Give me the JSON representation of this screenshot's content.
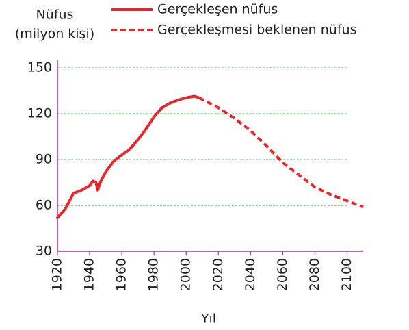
{
  "chart_data": {
    "type": "line",
    "y_label": [
      "Nüfus",
      "(milyon kişi)"
    ],
    "x_label": "Yıl",
    "xlim": [
      1920,
      2110
    ],
    "xticks": [
      1920,
      1940,
      1960,
      1980,
      2000,
      2020,
      2040,
      2060,
      2080,
      2100
    ],
    "ylim": [
      30,
      155
    ],
    "yticks": [
      30,
      60,
      90,
      120,
      150
    ],
    "grid": true,
    "grid_color": "#2e9e3a",
    "axis_color": "#a0389c",
    "series": [
      {
        "name": "Gerçekleşen nüfus",
        "color": "#e8262b",
        "dashed": false,
        "x": [
          1920,
          1925,
          1930,
          1935,
          1940,
          1942,
          1944,
          1945,
          1947,
          1950,
          1955,
          1960,
          1965,
          1970,
          1975,
          1980,
          1985,
          1990,
          1995,
          2000,
          2005,
          2008
        ],
        "values": [
          52,
          58,
          68,
          70,
          73,
          76,
          75,
          70,
          76,
          82,
          89,
          93,
          97,
          103,
          110,
          118,
          124,
          127,
          129,
          130.5,
          131.5,
          130.5
        ]
      },
      {
        "name": "Gerçekleşmesi beklenen nüfus",
        "color": "#e8262b",
        "dashed": true,
        "x": [
          2008,
          2020,
          2030,
          2040,
          2050,
          2060,
          2070,
          2080,
          2090,
          2100,
          2110
        ],
        "values": [
          130.5,
          124,
          117,
          109,
          99,
          88,
          80,
          72,
          67,
          63,
          59
        ]
      }
    ]
  }
}
